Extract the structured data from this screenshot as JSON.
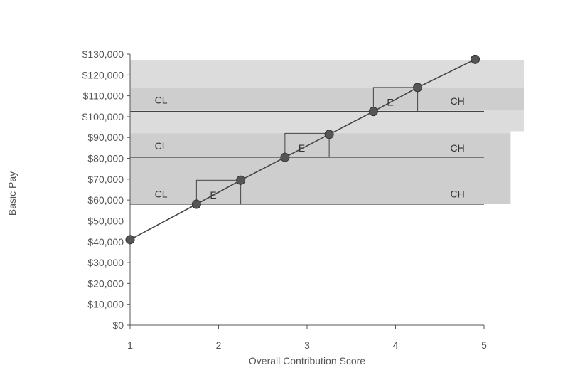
{
  "chart_data": {
    "type": "scatter",
    "xlabel": "Overall Contribution Score",
    "ylabel": "Basic Pay",
    "xlim": [
      1,
      5
    ],
    "ylim": [
      0,
      130000
    ],
    "x_ticks": [
      "1",
      "2",
      "3",
      "4",
      "5"
    ],
    "y_ticks": [
      "$0",
      "$10,000",
      "$20,000",
      "$30,000",
      "$40,000",
      "$50,000",
      "$60,000",
      "$70,000",
      "$80,000",
      "$90,000",
      "$100,000",
      "$110,000",
      "$120,000",
      "$130,000"
    ],
    "grid": false,
    "series": [
      {
        "points": [
          {
            "x": 1.0,
            "y": 41000
          },
          {
            "x": 1.75,
            "y": 58000
          },
          {
            "x": 2.25,
            "y": 69500
          },
          {
            "x": 2.75,
            "y": 80500
          },
          {
            "x": 3.25,
            "y": 91500
          },
          {
            "x": 3.75,
            "y": 102500
          },
          {
            "x": 4.25,
            "y": 114000
          },
          {
            "x": 4.9,
            "y": 127500
          }
        ]
      }
    ],
    "bands": [
      {
        "y_start": 58000,
        "y_end": 93000,
        "x_end": 5.3
      },
      {
        "y_start": 93000,
        "y_end": 127000,
        "x_end": 5.45
      }
    ],
    "reference_lines": [
      {
        "y": 58000,
        "x_start": 1.0,
        "x_end": 5.0
      },
      {
        "y": 80500,
        "x_start": 1.0,
        "x_end": 5.0
      },
      {
        "y": 102500,
        "x_start": 1.0,
        "x_end": 5.0
      }
    ],
    "boxes": [
      {
        "x0": 1.75,
        "x1": 2.25,
        "y0": 58000,
        "y1": 69500,
        "label": "E"
      },
      {
        "x0": 2.75,
        "x1": 3.25,
        "y0": 80500,
        "y1": 92000,
        "label": "E"
      },
      {
        "x0": 3.75,
        "x1": 4.25,
        "y0": 102500,
        "y1": 114000,
        "label": "E"
      }
    ],
    "annotations": [
      {
        "text": "CL",
        "x": 1.35,
        "y": 63000
      },
      {
        "text": "CH",
        "x": 4.7,
        "y": 63000
      },
      {
        "text": "CL",
        "x": 1.35,
        "y": 86000
      },
      {
        "text": "CH",
        "x": 4.7,
        "y": 85000
      },
      {
        "text": "CL",
        "x": 1.35,
        "y": 108000
      },
      {
        "text": "CH",
        "x": 4.7,
        "y": 107500
      }
    ],
    "colors": {
      "band_light": "#dcdcdc",
      "band_dark": "#c2c2c2",
      "line": "#444444",
      "marker": "#555555",
      "axis": "#555555"
    }
  }
}
